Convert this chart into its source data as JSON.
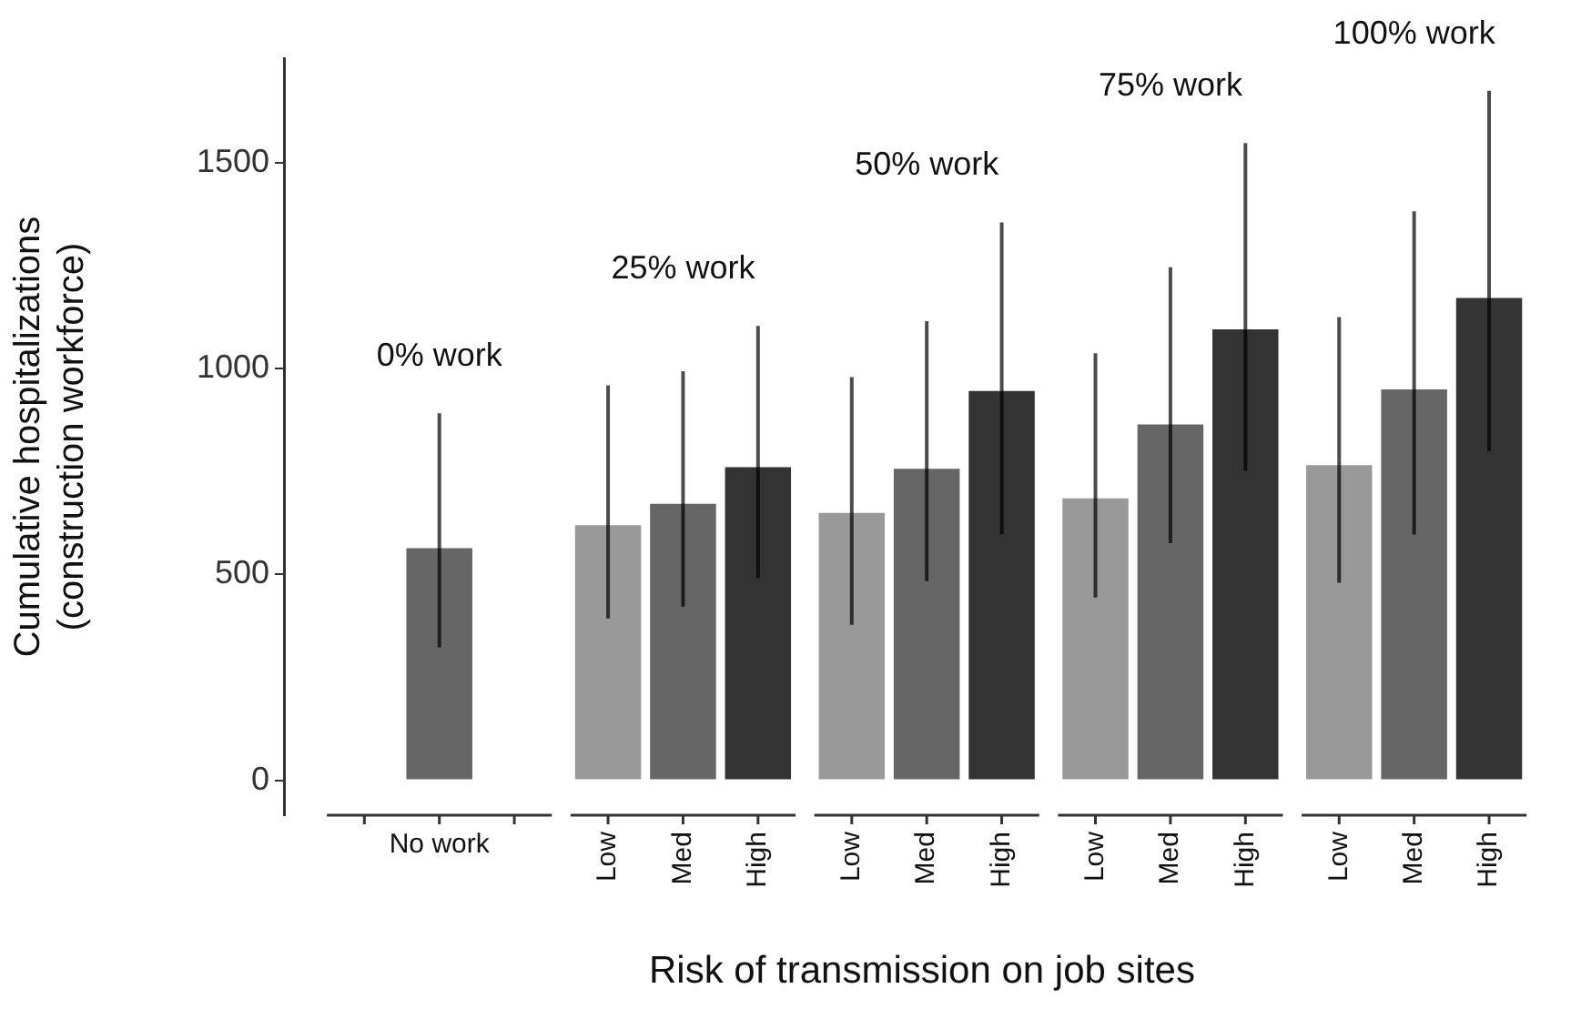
{
  "chart_data": {
    "type": "bar",
    "ylabel": "Cumulative hospitalizations\n(construction workforce)",
    "xlabel": "Risk of transmission on job sites",
    "annotations": [
      "0% work",
      "25% work",
      "50% work",
      "75% work",
      "100% work"
    ],
    "categories": [
      null,
      "No work",
      null,
      "Low",
      "Med",
      "High",
      "Low",
      "Med",
      "High",
      "Low",
      "Med",
      "High",
      "Low",
      "Med",
      "High"
    ],
    "values": [
      null,
      564,
      null,
      620,
      672,
      761,
      650,
      757,
      946,
      685,
      865,
      1096,
      766,
      950,
      1172
    ],
    "colors": [
      "#999999",
      "#666666",
      "#333333",
      "#999999",
      "#666666",
      "#333333",
      "#999999",
      "#666666",
      "#333333",
      "#999999",
      "#666666",
      "#333333",
      "#999999",
      "#666666",
      "#333333"
    ],
    "errors": [
      null,
      [
        323,
        892
      ],
      null,
      [
        393,
        960
      ],
      [
        422,
        994
      ],
      [
        491,
        1104
      ],
      [
        378,
        980
      ],
      [
        484,
        1116
      ],
      [
        598,
        1356
      ],
      [
        444,
        1038
      ],
      [
        576,
        1247
      ],
      [
        752,
        1549
      ],
      [
        480,
        1126
      ],
      [
        597,
        1383
      ],
      [
        800,
        1676
      ]
    ],
    "ylim": [
      -85,
      1755
    ],
    "yticks": [
      0,
      500,
      1000,
      1500
    ],
    "grid": false,
    "legend": false
  }
}
